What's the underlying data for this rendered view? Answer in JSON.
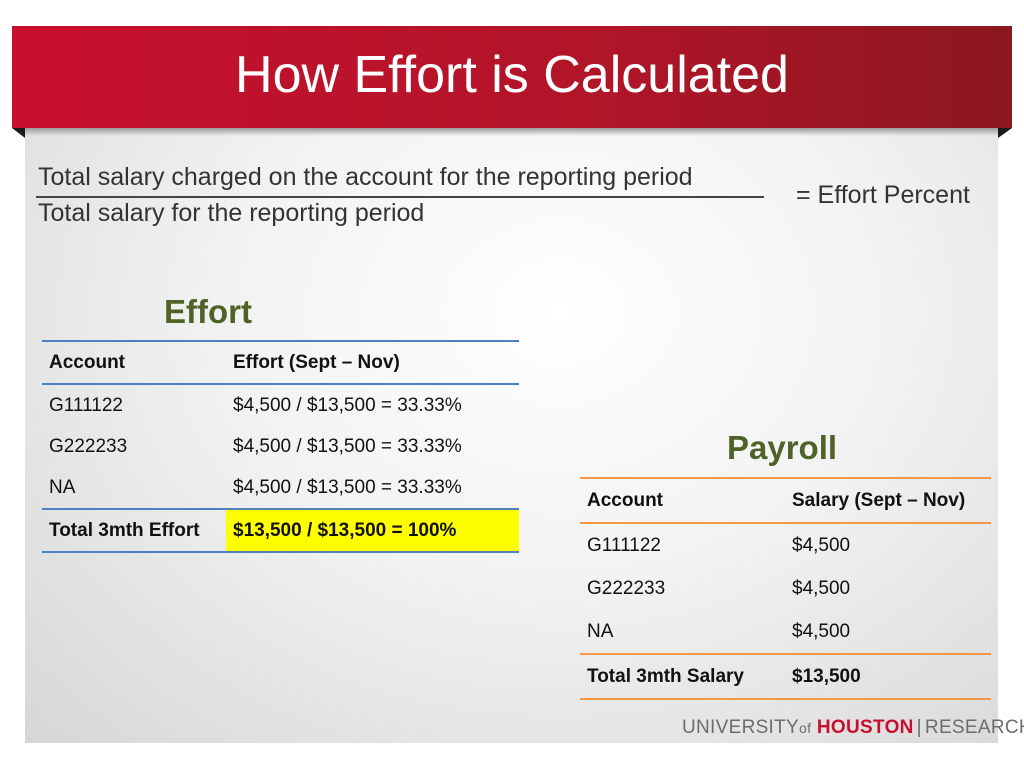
{
  "slide": {
    "title": "How Effort is Calculated"
  },
  "formula": {
    "numerator": "Total salary charged on the account for the reporting period",
    "denominator": "Total salary for the reporting period",
    "result": "=  Effort Percent"
  },
  "effort": {
    "title": "Effort",
    "headers": [
      "Account",
      "Effort (Sept – Nov)"
    ],
    "rows": [
      [
        "G111122",
        "$4,500 / $13,500 = 33.33%"
      ],
      [
        "G222233",
        "$4,500 / $13,500 = 33.33%"
      ],
      [
        "NA",
        "$4,500 / $13,500 = 33.33%"
      ]
    ],
    "total": [
      "Total 3mth Effort",
      "$13,500 / $13,500 = 100%"
    ],
    "highlight_color": "#ffff00",
    "rule_color": "#4f81bd"
  },
  "payroll": {
    "title": "Payroll",
    "headers": [
      "Account",
      "Salary (Sept – Nov)"
    ],
    "rows": [
      [
        "G111122",
        "$4,500"
      ],
      [
        "G222233",
        "$4,500"
      ],
      [
        "NA",
        "$4,500"
      ]
    ],
    "total": [
      "Total 3mth Salary",
      "$13,500"
    ],
    "rule_color": "#f79646"
  },
  "logo": {
    "university": "UNIVERSITY",
    "of": "of",
    "houston": "HOUSTON",
    "separator": "|",
    "research": "RESEARCH"
  },
  "colors": {
    "banner": "#c8102e",
    "section_title": "#4f6228"
  }
}
